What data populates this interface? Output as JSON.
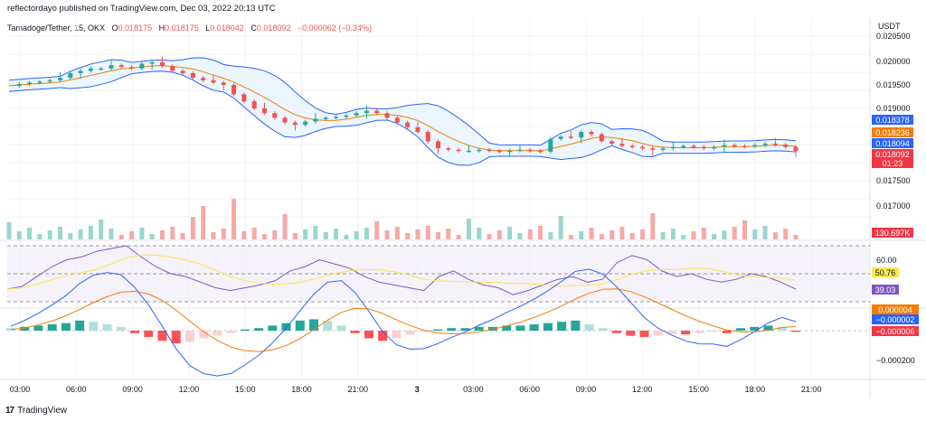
{
  "publisher_line": "reflectordayo published on TradingView.com, Dec 03, 2022 20:13 UTC",
  "legend": {
    "symbol": "Tamadoge/Tether, 15, OKX",
    "open_label": "O",
    "open": "0.018175",
    "high_label": "H",
    "high": "0.018175",
    "low_label": "L",
    "low": "0.018042",
    "close_label": "C",
    "close": "0.018092",
    "change": "−0.000062 (−0.34%)"
  },
  "price_unit": "USDT",
  "price_axis": {
    "ticks": [
      "0.020500",
      "0.020000",
      "0.019500",
      "0.019000",
      "0.017500",
      "0.017000"
    ],
    "labels": [
      {
        "text": "0.018378",
        "color": "#2962ff"
      },
      {
        "text": "0.018236",
        "color": "#f57c00"
      },
      {
        "text": "0.018094",
        "color": "#2962ff"
      },
      {
        "text": "0.018092",
        "color": "#f23645"
      },
      {
        "text": "01:23",
        "color": "#f23645"
      }
    ]
  },
  "volume_label": {
    "text": "130.697K",
    "color": "#f23645"
  },
  "rsi_axis": {
    "ticks": [
      "60.00"
    ],
    "labels": [
      {
        "text": "50.76",
        "color": "#fbe64b",
        "text_color": "#131722"
      },
      {
        "text": "39.03",
        "color": "#7e57c2",
        "text_color": "#ffffff"
      }
    ]
  },
  "macd_axis": {
    "ticks": [
      "−0.000200"
    ],
    "labels": [
      {
        "text": "0.000004",
        "color": "#f57c00"
      },
      {
        "text": "−0.000002",
        "color": "#2962ff"
      },
      {
        "text": "−0.000006",
        "color": "#f23645"
      }
    ]
  },
  "time_axis": [
    "03:00",
    "06:00",
    "09:00",
    "12:00",
    "15:00",
    "18:00",
    "21:00",
    "3",
    "03:00",
    "06:00",
    "09:00",
    "12:00",
    "15:00",
    "18:00",
    "21:00"
  ],
  "footer": {
    "logo": "17",
    "brand": "TradingView"
  },
  "colors": {
    "up": "#26a69a",
    "down": "#ef5350",
    "bb": "#2962ff",
    "bb_fill": "#e3f2fd",
    "basis": "#f57c00",
    "rsi": "#7e57c2",
    "rsi_ma": "#fbe64b"
  },
  "chart_data": {
    "type": "candlestick",
    "price_series": [
      0.01948,
      0.01952,
      0.01955,
      0.01957,
      0.0196,
      0.01965,
      0.01975,
      0.0198,
      0.01985,
      0.01985,
      0.01992,
      0.01988,
      0.01985,
      0.01995,
      0.01998,
      0.0199,
      0.0198,
      0.01975,
      0.01965,
      0.0196,
      0.01955,
      0.0195,
      0.0193,
      0.01915,
      0.019,
      0.0189,
      0.0188,
      0.0187,
      0.01865,
      0.01872,
      0.01878,
      0.0188,
      0.01882,
      0.01885,
      0.0189,
      0.01895,
      0.0189,
      0.0188,
      0.0187,
      0.0186,
      0.0185,
      0.0183,
      0.01815,
      0.01812,
      0.0181,
      0.0181,
      0.01812,
      0.0181,
      0.01808,
      0.0181,
      0.01812,
      0.0181,
      0.01808,
      0.01835,
      0.0184,
      0.01838,
      0.0185,
      0.01845,
      0.0183,
      0.01825,
      0.0182,
      0.01818,
      0.01815,
      0.01812,
      0.01815,
      0.01818,
      0.0182,
      0.01818,
      0.01815,
      0.01818,
      0.01822,
      0.0182,
      0.01819,
      0.01822,
      0.01825,
      0.01823,
      0.01818,
      0.01809
    ],
    "rsi": [
      39,
      41,
      48,
      55,
      60,
      62,
      66,
      68,
      70,
      62,
      55,
      50,
      48,
      44,
      40,
      38,
      40,
      42,
      45,
      52,
      55,
      60,
      57,
      54,
      48,
      44,
      42,
      40,
      38,
      48,
      52,
      46,
      42,
      40,
      35,
      38,
      42,
      46,
      48,
      44,
      46,
      58,
      63,
      60,
      52,
      48,
      50,
      46,
      44,
      46,
      50,
      48,
      44,
      39
    ],
    "macd_hist": [
      2,
      3,
      4,
      5,
      6,
      8,
      7,
      5,
      3,
      -2,
      -5,
      -8,
      -10,
      -9,
      -6,
      -4,
      -2,
      1,
      2,
      4,
      6,
      8,
      9,
      8,
      4,
      -2,
      -6,
      -8,
      -6,
      -3,
      -1,
      1,
      2,
      2,
      3,
      3,
      4,
      4,
      5,
      6,
      7,
      8,
      5,
      2,
      -2,
      -4,
      -5,
      -4,
      -3,
      -3,
      -2,
      -1,
      -2,
      2,
      3,
      4,
      3,
      -1
    ]
  }
}
